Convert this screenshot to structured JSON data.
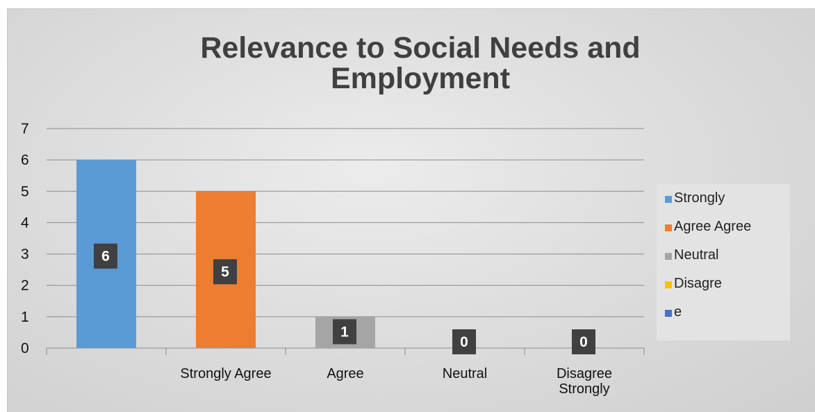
{
  "chart_data": {
    "type": "bar",
    "title": "Relevance to Social Needs and Employment",
    "title_lines": [
      "Relevance to Social Needs and",
      "Employment"
    ],
    "categories": [
      "",
      "Strongly Agree",
      "Agree",
      "Neutral",
      "Disagree Strongly"
    ],
    "category_label_lines": [
      [
        ""
      ],
      [
        "Strongly Agree"
      ],
      [
        "Agree"
      ],
      [
        "Neutral"
      ],
      [
        "Disagree",
        "Strongly"
      ]
    ],
    "values": [
      6,
      5,
      1,
      0,
      0
    ],
    "bar_colors": [
      "#5b9bd5",
      "#ed7d31",
      "#a5a5a5",
      "#ffc000",
      "#4472c4"
    ],
    "y_ticks": [
      0,
      1,
      2,
      3,
      4,
      5,
      6,
      7
    ],
    "ylim": [
      0,
      7
    ],
    "grid": true,
    "data_labels": true,
    "legend_position": "right",
    "legend": [
      {
        "label": "Strongly",
        "color": "#5b9bd5"
      },
      {
        "label": "Agree Agree",
        "color": "#ed7d31"
      },
      {
        "label": "Neutral",
        "color": "#a5a5a5"
      },
      {
        "label": "Disagre",
        "color": "#ffc000"
      },
      {
        "label": "e",
        "color": "#4472c4"
      }
    ]
  }
}
